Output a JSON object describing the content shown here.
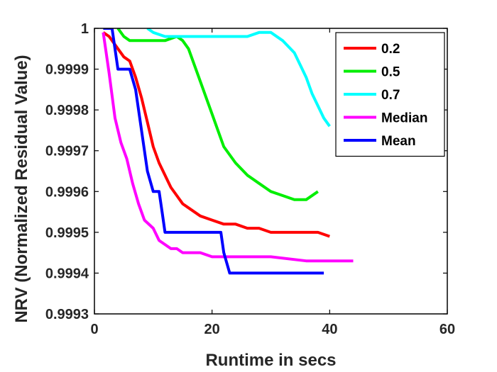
{
  "chart_data": {
    "type": "line",
    "title": "",
    "xlabel": "Runtime in secs",
    "ylabel": "NRV (Normalized Residual Value)",
    "xlim": [
      0,
      60
    ],
    "ylim": [
      0.9993,
      1
    ],
    "xticks": [
      0,
      20,
      40,
      60
    ],
    "xtick_labels": [
      "0",
      "20",
      "40",
      "60"
    ],
    "yticks": [
      0.9993,
      0.9994,
      0.9995,
      0.9996,
      0.9997,
      0.9998,
      0.9999,
      1
    ],
    "ytick_labels": [
      "0.9993",
      "0.9994",
      "0.9995",
      "0.9996",
      "0.9997",
      "0.9998",
      "0.9999",
      "1"
    ],
    "grid": false,
    "legend_position": "top-right",
    "series": [
      {
        "name": "0.2",
        "color": "#ff0000",
        "x": [
          1.5,
          2.5,
          4,
          5,
          6,
          7,
          8,
          9,
          10,
          11,
          12,
          13,
          14,
          15,
          16,
          18,
          20,
          22,
          24,
          26,
          28,
          30,
          32,
          34,
          36,
          38,
          40
        ],
        "y": [
          0.99999,
          0.99998,
          0.99995,
          0.99993,
          0.99992,
          0.99988,
          0.99983,
          0.99977,
          0.99971,
          0.99967,
          0.99964,
          0.99961,
          0.99959,
          0.99957,
          0.99956,
          0.99954,
          0.99953,
          0.99952,
          0.99952,
          0.99951,
          0.99951,
          0.9995,
          0.9995,
          0.9995,
          0.9995,
          0.9995,
          0.99949
        ]
      },
      {
        "name": "0.5",
        "color": "#00ee00",
        "x": [
          4,
          5,
          6,
          7,
          8,
          9,
          10,
          12,
          14,
          15,
          16,
          17,
          18,
          19,
          20,
          21,
          22,
          23,
          24,
          26,
          28,
          30,
          32,
          34,
          36,
          38
        ],
        "y": [
          1,
          0.99998,
          0.99997,
          0.99997,
          0.99997,
          0.99997,
          0.99997,
          0.99997,
          0.99998,
          0.99997,
          0.99995,
          0.99991,
          0.99987,
          0.99983,
          0.99979,
          0.99975,
          0.99971,
          0.99969,
          0.99967,
          0.99964,
          0.99962,
          0.9996,
          0.99959,
          0.99958,
          0.99958,
          0.9996
        ]
      },
      {
        "name": "0.7",
        "color": "#00ffff",
        "x": [
          9,
          10,
          12,
          14,
          16,
          18,
          20,
          22,
          24,
          26,
          28,
          30,
          32,
          34,
          35,
          36,
          37,
          38,
          39,
          40
        ],
        "y": [
          1,
          0.99999,
          0.99998,
          0.99998,
          0.99998,
          0.99998,
          0.99998,
          0.99998,
          0.99998,
          0.99998,
          0.99999,
          0.99999,
          0.99997,
          0.99994,
          0.99991,
          0.99988,
          0.99984,
          0.99981,
          0.99978,
          0.99976
        ]
      },
      {
        "name": "Median",
        "color": "#ff00ff",
        "x": [
          1.5,
          2.5,
          3.5,
          4.5,
          5.5,
          6.5,
          7.5,
          8.5,
          10,
          11,
          12,
          13,
          14,
          15,
          16,
          18,
          20,
          24,
          30,
          36,
          40,
          44
        ],
        "y": [
          0.99999,
          0.99989,
          0.99978,
          0.99972,
          0.99968,
          0.99962,
          0.99957,
          0.99953,
          0.99951,
          0.99948,
          0.99947,
          0.99946,
          0.99946,
          0.99945,
          0.99945,
          0.99945,
          0.99944,
          0.99944,
          0.99944,
          0.99943,
          0.99943,
          0.99943
        ]
      },
      {
        "name": "Mean",
        "color": "#0000ff",
        "x": [
          1.5,
          2.5,
          3,
          4,
          5,
          6,
          7,
          8,
          9,
          10,
          10.5,
          11,
          11.5,
          12,
          13,
          14,
          16,
          18,
          20,
          21.5,
          22,
          23,
          24,
          26,
          28,
          30,
          32,
          34,
          36,
          38,
          39
        ],
        "y": [
          1,
          1,
          1,
          0.9999,
          0.9999,
          0.9999,
          0.99985,
          0.99975,
          0.99965,
          0.9996,
          0.9996,
          0.9996,
          0.99955,
          0.9995,
          0.9995,
          0.9995,
          0.9995,
          0.9995,
          0.9995,
          0.9995,
          0.99945,
          0.9994,
          0.9994,
          0.9994,
          0.9994,
          0.9994,
          0.9994,
          0.9994,
          0.9994,
          0.9994,
          0.9994
        ]
      }
    ]
  }
}
